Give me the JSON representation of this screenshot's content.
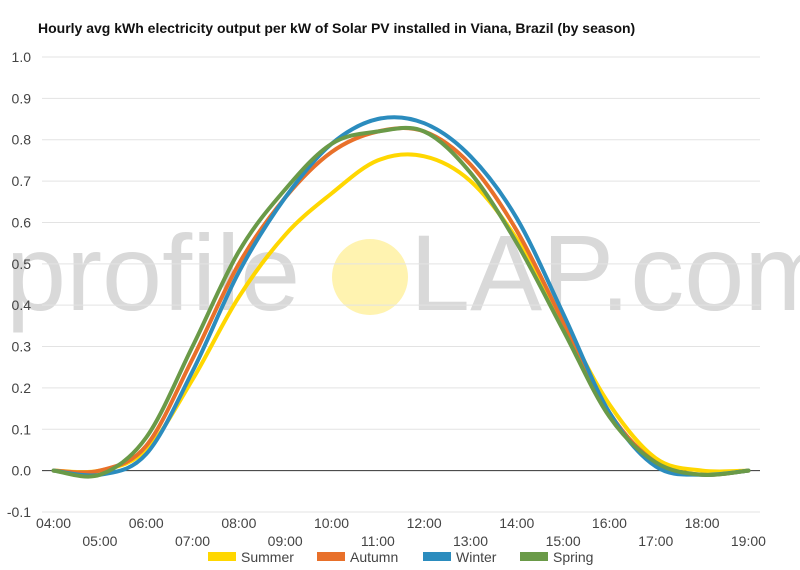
{
  "chart_data": {
    "type": "line",
    "title": "Hourly avg kWh electricity output per kW of Solar PV installed in Viana, Brazil (by season)",
    "xlabel": "",
    "ylabel": "",
    "ylim": [
      -0.1,
      1.0
    ],
    "yticks": [
      "1.0",
      "0.9",
      "0.8",
      "0.7",
      "0.6",
      "0.5",
      "0.4",
      "0.3",
      "0.2",
      "0.1",
      "0.0",
      "-0.1"
    ],
    "x_ticks_upper": [
      "04:00",
      "06:00",
      "08:00",
      "10:00",
      "12:00",
      "14:00",
      "16:00",
      "18:00"
    ],
    "x_ticks_lower": [
      "05:00",
      "07:00",
      "09:00",
      "11:00",
      "13:00",
      "15:00",
      "17:00",
      "19:00"
    ],
    "x_hours": [
      4,
      5,
      6,
      7,
      8,
      9,
      10,
      11,
      12,
      13,
      14,
      15,
      16,
      17,
      18,
      19
    ],
    "grid": true,
    "legend_position": "bottom",
    "series": [
      {
        "name": "Summer",
        "color": "#FFD700",
        "values": [
          0.0,
          0.0,
          0.05,
          0.22,
          0.42,
          0.57,
          0.67,
          0.75,
          0.76,
          0.7,
          0.56,
          0.36,
          0.16,
          0.03,
          0.0,
          0.0
        ]
      },
      {
        "name": "Autumn",
        "color": "#E8702A",
        "values": [
          0.0,
          0.0,
          0.06,
          0.27,
          0.5,
          0.66,
          0.77,
          0.82,
          0.82,
          0.74,
          0.58,
          0.36,
          0.14,
          0.02,
          -0.01,
          0.0
        ]
      },
      {
        "name": "Winter",
        "color": "#2B8CBE",
        "values": [
          0.0,
          -0.01,
          0.04,
          0.24,
          0.48,
          0.66,
          0.79,
          0.85,
          0.84,
          0.76,
          0.61,
          0.38,
          0.14,
          0.01,
          -0.01,
          0.0
        ]
      },
      {
        "name": "Spring",
        "color": "#6A9A48",
        "values": [
          0.0,
          -0.01,
          0.08,
          0.3,
          0.53,
          0.68,
          0.79,
          0.82,
          0.82,
          0.72,
          0.55,
          0.34,
          0.13,
          0.02,
          -0.01,
          0.0
        ]
      }
    ],
    "watermark": {
      "text_left": "profile",
      "text_right": "LAP.com",
      "sun_color": "#FFF3B0"
    }
  }
}
